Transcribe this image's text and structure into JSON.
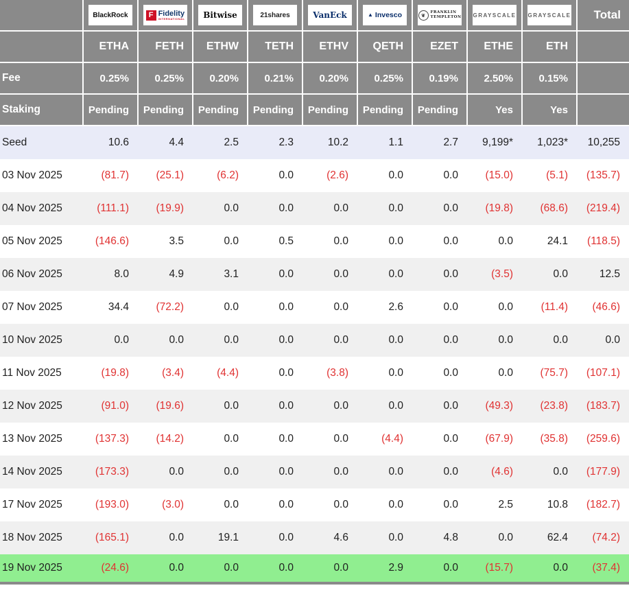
{
  "chart_data": {
    "type": "table",
    "corner_label": "",
    "total_label": "Total",
    "row_headers": {
      "fee": "Fee",
      "staking": "Staking"
    },
    "funds": [
      {
        "provider": "BlackRock",
        "logo": "blackrock-logo",
        "ticker": "ETHA",
        "fee": "0.25%",
        "staking": "Pending"
      },
      {
        "provider": "Fidelity",
        "provider_sub": "INTERNATIONAL",
        "logo_letter": "F",
        "logo": "fidelity-logo",
        "ticker": "FETH",
        "fee": "0.25%",
        "staking": "Pending"
      },
      {
        "provider": "Bitwise",
        "logo": "bitwise-logo",
        "ticker": "ETHW",
        "fee": "0.20%",
        "staking": "Pending"
      },
      {
        "provider": "21shares",
        "logo": "21shares-logo",
        "ticker": "TETH",
        "fee": "0.21%",
        "staking": "Pending"
      },
      {
        "provider": "VanEck",
        "logo": "vaneck-logo",
        "ticker": "ETHV",
        "fee": "0.20%",
        "staking": "Pending"
      },
      {
        "provider": "Invesco",
        "logo": "invesco-logo",
        "ticker": "QETH",
        "fee": "0.25%",
        "staking": "Pending"
      },
      {
        "provider": "FRANKLIN",
        "provider_line2": "TEMPLETON",
        "logo": "franklin-templeton-logo",
        "ticker": "EZET",
        "fee": "0.19%",
        "staking": "Pending"
      },
      {
        "provider": "GRAYSCALE",
        "logo": "grayscale-logo",
        "ticker": "ETHE",
        "fee": "2.50%",
        "staking": "Yes"
      },
      {
        "provider": "GRAYSCALE",
        "logo": "grayscale-logo",
        "ticker": "ETH",
        "fee": "0.15%",
        "staking": "Yes"
      }
    ],
    "rows": [
      {
        "label": "Seed",
        "style": "seed",
        "values": [
          "10.6",
          "4.4",
          "2.5",
          "2.3",
          "10.2",
          "1.1",
          "2.7",
          "9,199*",
          "1,023*",
          "10,255"
        ]
      },
      {
        "label": "03 Nov 2025",
        "style": "white",
        "values": [
          "(81.7)",
          "(25.1)",
          "(6.2)",
          "0.0",
          "(2.6)",
          "0.0",
          "0.0",
          "(15.0)",
          "(5.1)",
          "(135.7)"
        ]
      },
      {
        "label": "04 Nov 2025",
        "style": "alt",
        "values": [
          "(111.1)",
          "(19.9)",
          "0.0",
          "0.0",
          "0.0",
          "0.0",
          "0.0",
          "(19.8)",
          "(68.6)",
          "(219.4)"
        ]
      },
      {
        "label": "05 Nov 2025",
        "style": "white",
        "values": [
          "(146.6)",
          "3.5",
          "0.0",
          "0.5",
          "0.0",
          "0.0",
          "0.0",
          "0.0",
          "24.1",
          "(118.5)"
        ]
      },
      {
        "label": "06 Nov 2025",
        "style": "alt",
        "values": [
          "8.0",
          "4.9",
          "3.1",
          "0.0",
          "0.0",
          "0.0",
          "0.0",
          "(3.5)",
          "0.0",
          "12.5"
        ]
      },
      {
        "label": "07 Nov 2025",
        "style": "white",
        "values": [
          "34.4",
          "(72.2)",
          "0.0",
          "0.0",
          "0.0",
          "2.6",
          "0.0",
          "0.0",
          "(11.4)",
          "(46.6)"
        ]
      },
      {
        "label": "10 Nov 2025",
        "style": "alt",
        "values": [
          "0.0",
          "0.0",
          "0.0",
          "0.0",
          "0.0",
          "0.0",
          "0.0",
          "0.0",
          "0.0",
          "0.0"
        ]
      },
      {
        "label": "11 Nov 2025",
        "style": "white",
        "values": [
          "(19.8)",
          "(3.4)",
          "(4.4)",
          "0.0",
          "(3.8)",
          "0.0",
          "0.0",
          "0.0",
          "(75.7)",
          "(107.1)"
        ]
      },
      {
        "label": "12 Nov 2025",
        "style": "alt",
        "values": [
          "(91.0)",
          "(19.6)",
          "0.0",
          "0.0",
          "0.0",
          "0.0",
          "0.0",
          "(49.3)",
          "(23.8)",
          "(183.7)"
        ]
      },
      {
        "label": "13 Nov 2025",
        "style": "white",
        "values": [
          "(137.3)",
          "(14.2)",
          "0.0",
          "0.0",
          "0.0",
          "(4.4)",
          "0.0",
          "(67.9)",
          "(35.8)",
          "(259.6)"
        ]
      },
      {
        "label": "14 Nov 2025",
        "style": "alt",
        "values": [
          "(173.3)",
          "0.0",
          "0.0",
          "0.0",
          "0.0",
          "0.0",
          "0.0",
          "(4.6)",
          "0.0",
          "(177.9)"
        ]
      },
      {
        "label": "17 Nov 2025",
        "style": "white",
        "values": [
          "(193.0)",
          "(3.0)",
          "0.0",
          "0.0",
          "0.0",
          "0.0",
          "0.0",
          "2.5",
          "10.8",
          "(182.7)"
        ]
      },
      {
        "label": "18 Nov 2025",
        "style": "alt",
        "values": [
          "(165.1)",
          "0.0",
          "19.1",
          "0.0",
          "4.6",
          "0.0",
          "4.8",
          "0.0",
          "62.4",
          "(74.2)"
        ]
      },
      {
        "label": "19 Nov 2025",
        "style": "green",
        "values": [
          "(24.6)",
          "0.0",
          "0.0",
          "0.0",
          "0.0",
          "2.9",
          "0.0",
          "(15.7)",
          "0.0",
          "(37.4)"
        ]
      }
    ]
  },
  "colors": {
    "header_bg": "#8a8a8a",
    "seed_row_bg": "#e9ebf8",
    "alt_row_bg": "#f0f0f0",
    "highlight_row_bg": "#90ee90",
    "negative_text": "#e03232"
  }
}
